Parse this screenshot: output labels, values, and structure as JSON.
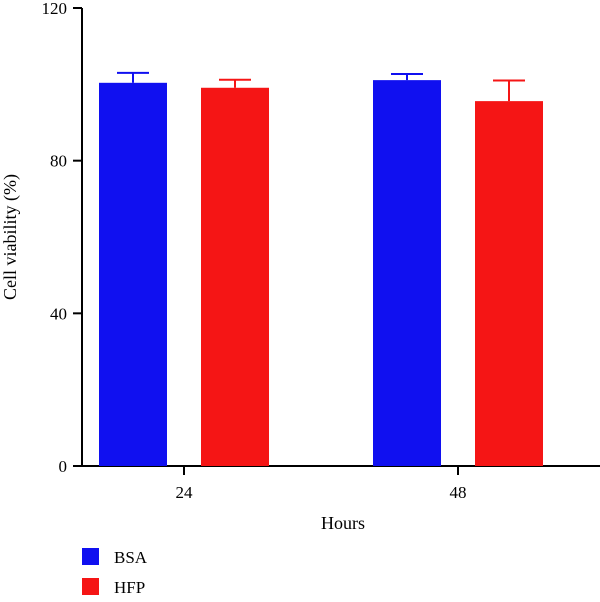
{
  "chart_data": {
    "type": "bar",
    "xlabel": "Hours",
    "ylabel": "Cell viability (%)",
    "ylim": [
      0,
      120
    ],
    "yticks": [
      0,
      40,
      80,
      120
    ],
    "categories": [
      "24",
      "48"
    ],
    "series": [
      {
        "name": "BSA",
        "color": "#1010f0",
        "values": [
          100.4,
          101.1
        ],
        "errors": [
          2.6,
          1.6
        ]
      },
      {
        "name": "HFP",
        "color": "#f51515",
        "values": [
          99.1,
          95.6
        ],
        "errors": [
          2.1,
          5.4
        ]
      }
    ],
    "legend_position": "bottom-left",
    "grid": false
  }
}
